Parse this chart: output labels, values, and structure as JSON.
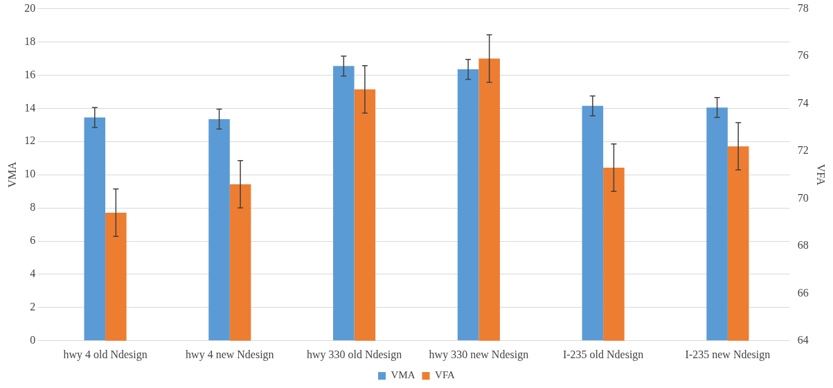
{
  "chart_data": {
    "type": "bar",
    "categories": [
      "hwy 4 old Ndesign",
      "hwy 4 new Ndesign",
      "hwy 330 old Ndesign",
      "hwy 330 new Ndesign",
      "I-235 old Ndesign",
      "I-235 new Ndesign"
    ],
    "series": [
      {
        "name": "VMA",
        "color": "#5b9bd5",
        "values": [
          13.45,
          13.35,
          16.55,
          16.35,
          14.15,
          14.05
        ],
        "errors": [
          0.6,
          0.6,
          0.6,
          0.6,
          0.6,
          0.6
        ]
      },
      {
        "name": "VFA",
        "color": "#ed7d31",
        "axis": "y2",
        "values": [
          69.4,
          70.6,
          74.6,
          75.9,
          71.3,
          72.2
        ],
        "errors": [
          1,
          1,
          1,
          1,
          1,
          1
        ]
      }
    ],
    "ylabel": "VMA",
    "y2label": "VFA",
    "ylim": [
      0,
      20
    ],
    "yticks": [
      0,
      2,
      4,
      6,
      8,
      10,
      12,
      14,
      16,
      18,
      20
    ],
    "y2lim": [
      64,
      78
    ],
    "y2ticks": [
      64,
      66,
      68,
      70,
      72,
      74,
      76,
      78
    ],
    "grid": "y",
    "legend": "bottom"
  }
}
